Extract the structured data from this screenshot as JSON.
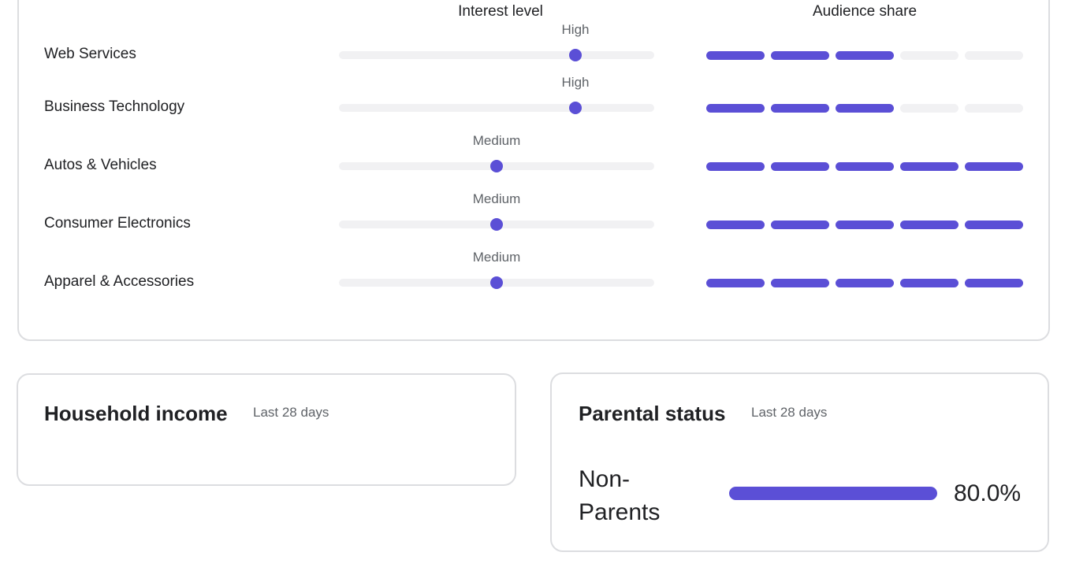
{
  "interests": {
    "columns": {
      "interest": "Interest level",
      "share": "Audience share"
    },
    "rows": [
      {
        "name": "Web Services",
        "level": "High",
        "interest": 75,
        "audience_share": 3
      },
      {
        "name": "Business Technology",
        "level": "High",
        "interest": 75,
        "audience_share": 3
      },
      {
        "name": "Autos & Vehicles",
        "level": "Medium",
        "interest": 50,
        "audience_share": 5
      },
      {
        "name": "Consumer Electronics",
        "level": "Medium",
        "interest": 50,
        "audience_share": 5
      },
      {
        "name": "Apparel & Accessories",
        "level": "Medium",
        "interest": 50,
        "audience_share": 5
      }
    ]
  },
  "household_income": {
    "title": "Household income",
    "period": "Last 28 days"
  },
  "parental_status": {
    "title": "Parental status",
    "period": "Last 28 days",
    "rows": [
      {
        "name": "Non-Parents",
        "value": 80,
        "value_label": "80.0%"
      }
    ]
  }
}
